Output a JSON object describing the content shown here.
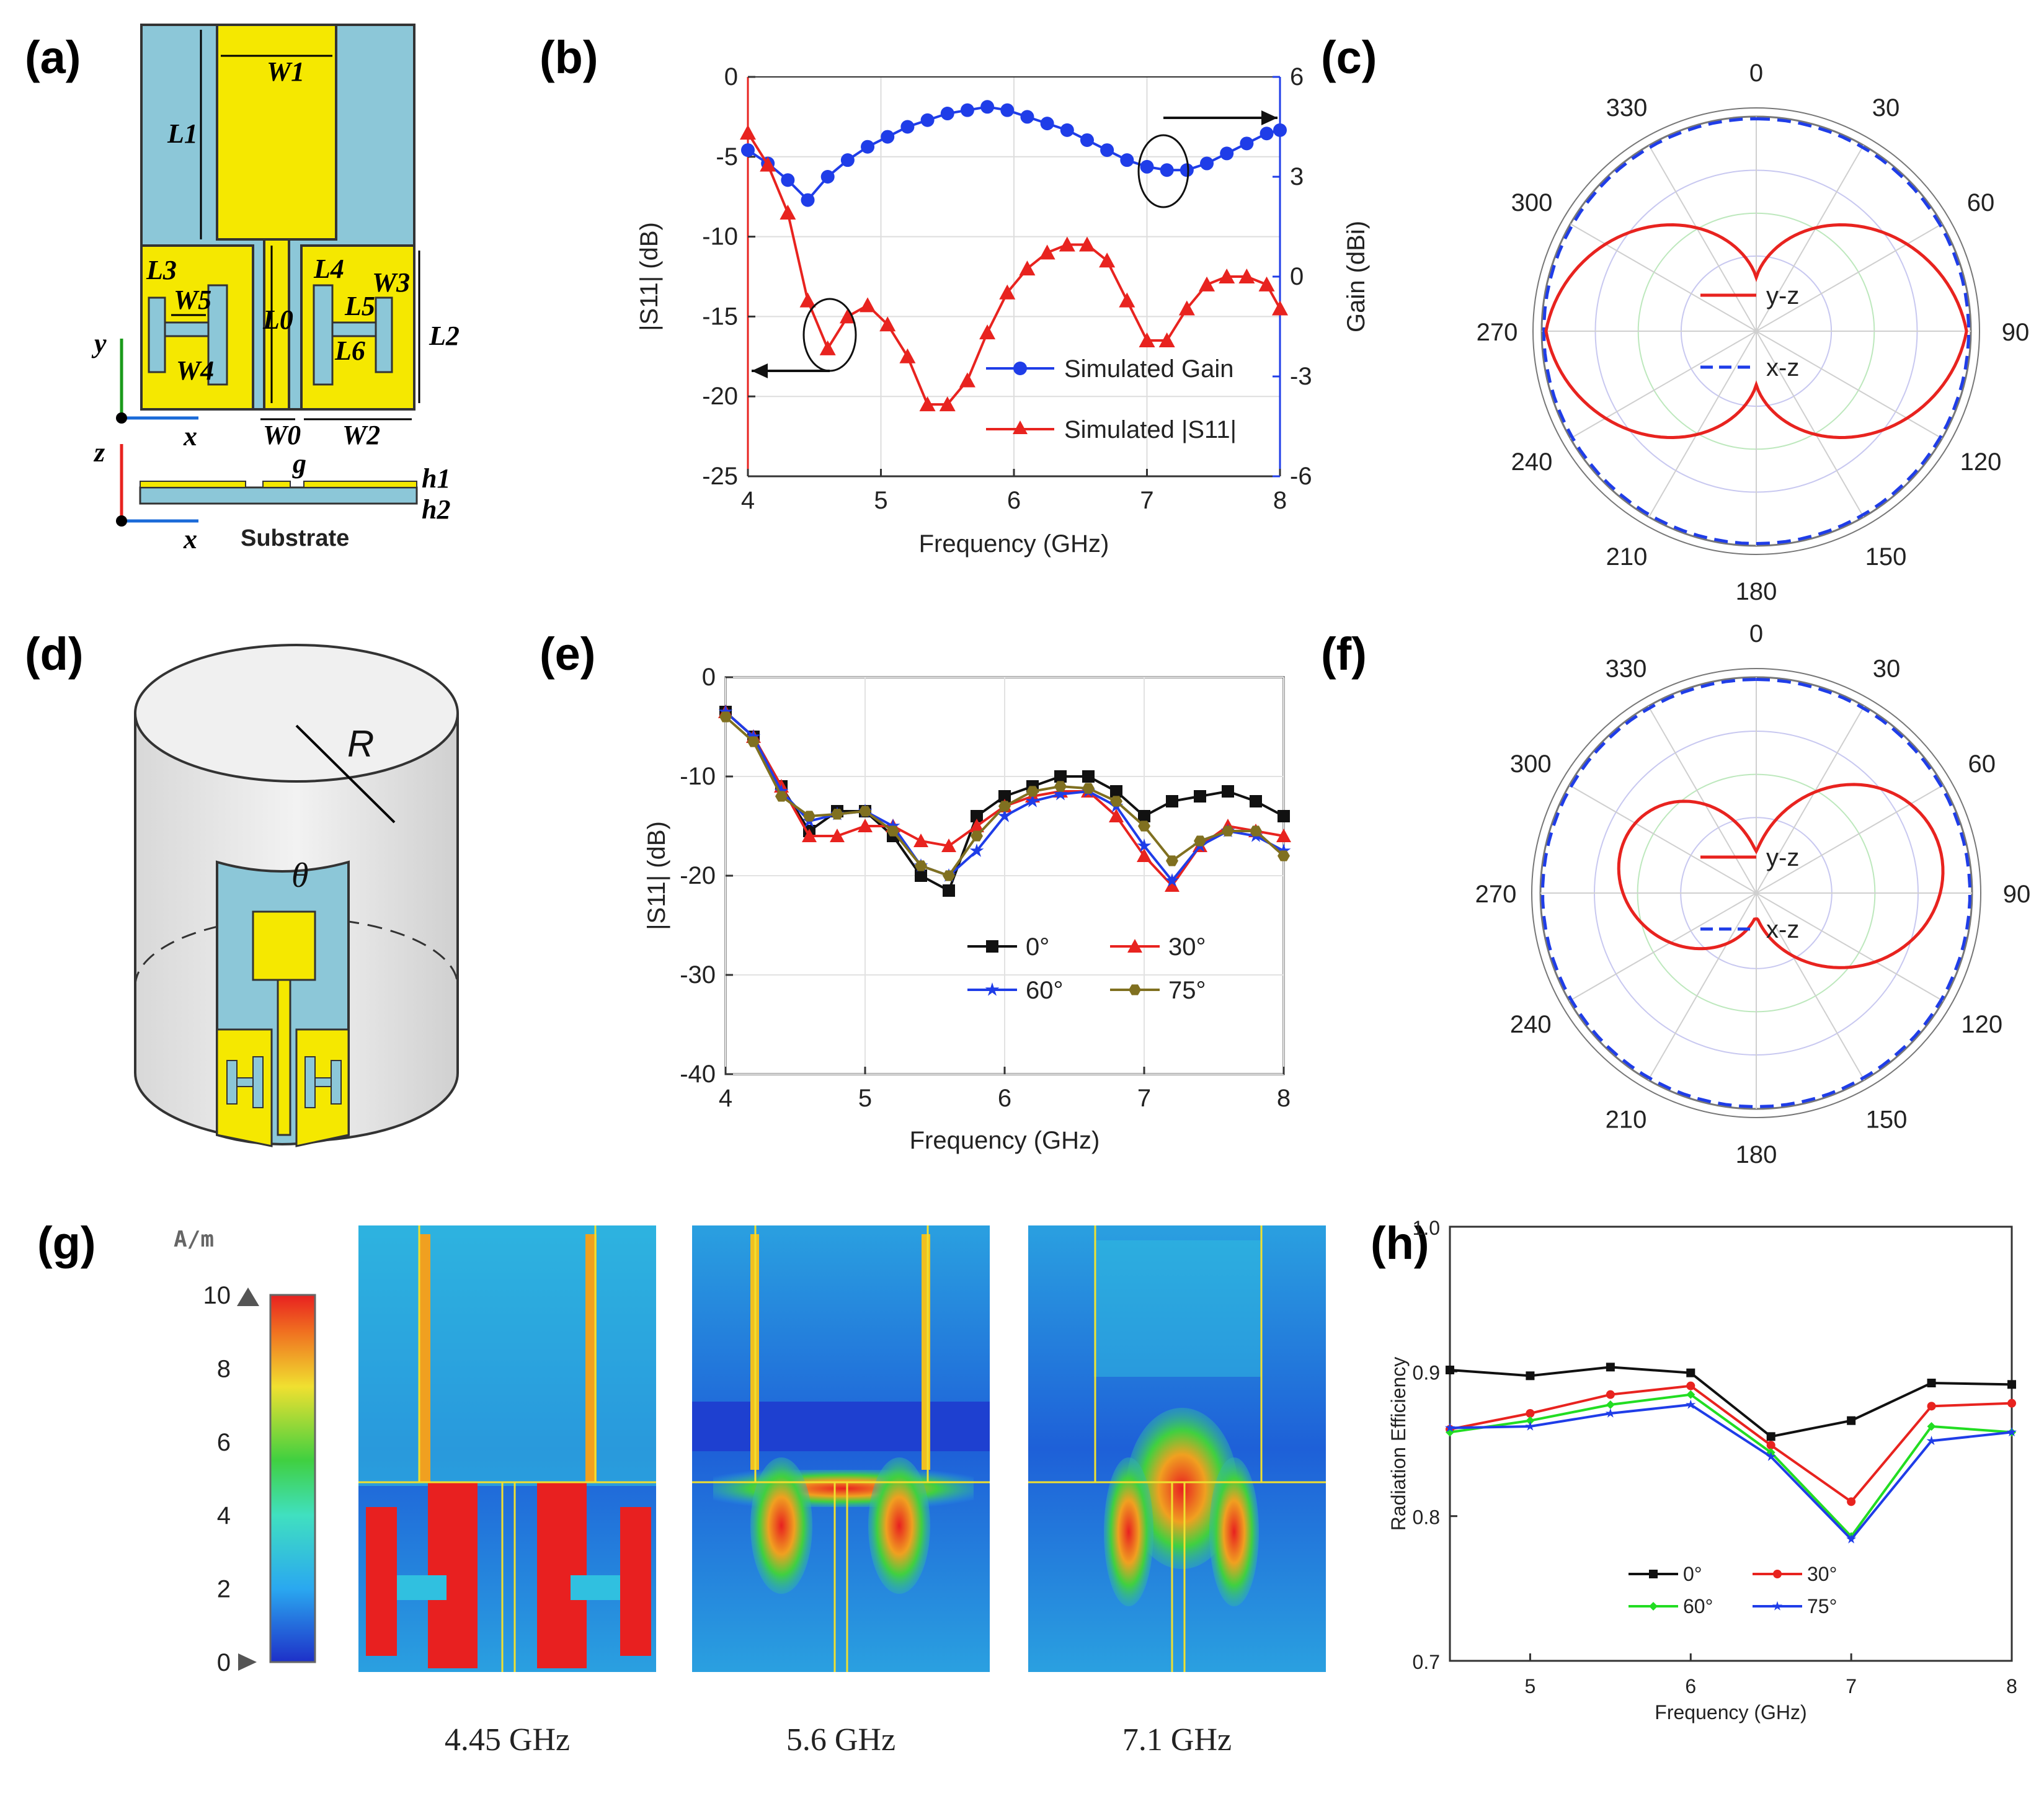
{
  "panel_labels": [
    "(a)",
    "(b)",
    "(c)",
    "(d)",
    "(e)",
    "(f)",
    "(g)",
    "(h)"
  ],
  "colors": {
    "red": "#e8231f",
    "blue": "#1f3de8",
    "black": "#111111",
    "green": "#22dd22",
    "olive": "#807020",
    "yellow": "#f5e800",
    "lightblue": "#8cc7d8",
    "grey": "#e9e9e9"
  },
  "geometry_a": {
    "labels": [
      "W1",
      "L1",
      "L3",
      "W5",
      "W4",
      "L0",
      "L4",
      "W3",
      "L5",
      "L6",
      "L2",
      "W0",
      "W2",
      "g",
      "h1",
      "h2"
    ],
    "axis_y": "y",
    "axis_x": "x",
    "axis_z": "z",
    "substrate": "Substrate"
  },
  "geometry_d": {
    "radius_label": "R",
    "angle_label": "θ"
  },
  "colorbar": {
    "unit": "A/m",
    "ticks": [
      "0",
      "2",
      "4",
      "6",
      "8",
      "10"
    ]
  },
  "current_maps": {
    "captions": [
      "4.45 GHz",
      "5.6 GHz",
      "7.1 GHz"
    ]
  },
  "chart_data": [
    {
      "id": "b",
      "type": "line",
      "xlabel": "Frequency (GHz)",
      "ylabel": "|S11| (dB)",
      "y2label": "Gain (dBi)",
      "xlim": [
        4,
        8
      ],
      "ylim": [
        -25,
        0
      ],
      "y2lim": [
        -6,
        6
      ],
      "xticks": [
        "4",
        "5",
        "6",
        "7",
        "8"
      ],
      "yticks": [
        "0",
        "-5",
        "-10",
        "-15",
        "-20",
        "-25"
      ],
      "y2ticks": [
        "6",
        "3",
        "0",
        "-3",
        "-6"
      ],
      "series": [
        {
          "name": "Simulated Gain",
          "axis": "right",
          "color": "#1f3de8",
          "marker": "circle",
          "x": [
            4.0,
            4.15,
            4.3,
            4.45,
            4.6,
            4.75,
            4.9,
            5.05,
            5.2,
            5.35,
            5.5,
            5.65,
            5.8,
            5.95,
            6.1,
            6.25,
            6.4,
            6.55,
            6.7,
            6.85,
            7.0,
            7.15,
            7.3,
            7.45,
            7.6,
            7.75,
            7.9,
            8.0
          ],
          "y": [
            3.8,
            3.4,
            2.9,
            2.3,
            3.0,
            3.5,
            3.9,
            4.2,
            4.5,
            4.7,
            4.9,
            5.0,
            5.1,
            5.0,
            4.8,
            4.6,
            4.4,
            4.1,
            3.8,
            3.5,
            3.3,
            3.2,
            3.2,
            3.4,
            3.7,
            4.0,
            4.3,
            4.4
          ]
        },
        {
          "name": "Simulated |S11|",
          "axis": "left",
          "color": "#e8231f",
          "marker": "triangle",
          "x": [
            4.0,
            4.15,
            4.3,
            4.45,
            4.6,
            4.75,
            4.9,
            5.05,
            5.2,
            5.35,
            5.5,
            5.65,
            5.8,
            5.95,
            6.1,
            6.25,
            6.4,
            6.55,
            6.7,
            6.85,
            7.0,
            7.15,
            7.3,
            7.45,
            7.6,
            7.75,
            7.9,
            8.0
          ],
          "y": [
            -3.5,
            -5.5,
            -8.5,
            -14,
            -17,
            -15,
            -14.3,
            -15.5,
            -17.5,
            -20.5,
            -20.5,
            -19,
            -16,
            -13.5,
            -12,
            -11,
            -10.5,
            -10.5,
            -11.5,
            -14,
            -16.5,
            -16.5,
            -14.5,
            -13,
            -12.5,
            -12.5,
            -13,
            -14.5
          ]
        }
      ]
    },
    {
      "id": "c",
      "type": "polar",
      "angle_ticks": [
        "0",
        "30",
        "60",
        "90",
        "120",
        "150",
        "180",
        "210",
        "240",
        "270",
        "300",
        "330"
      ],
      "series": [
        {
          "name": "y-z",
          "color": "#e8231f",
          "style": "solid"
        },
        {
          "name": "x-z",
          "color": "#1f3de8",
          "style": "dashed"
        }
      ]
    },
    {
      "id": "e",
      "type": "line",
      "xlabel": "Frequency (GHz)",
      "ylabel": "|S11| (dB)",
      "xlim": [
        4,
        8
      ],
      "ylim": [
        -40,
        0
      ],
      "xticks": [
        "4",
        "5",
        "6",
        "7",
        "8"
      ],
      "yticks": [
        "0",
        "-10",
        "-20",
        "-30",
        "-40"
      ],
      "x": [
        4.0,
        4.2,
        4.4,
        4.6,
        4.8,
        5.0,
        5.2,
        5.4,
        5.6,
        5.8,
        6.0,
        6.2,
        6.4,
        6.6,
        6.8,
        7.0,
        7.2,
        7.4,
        7.6,
        7.8,
        8.0
      ],
      "series": [
        {
          "name": "0°",
          "color": "#111111",
          "marker": "square",
          "y": [
            -3.5,
            -6,
            -11,
            -15.5,
            -13.5,
            -13.5,
            -16,
            -20,
            -21.5,
            -14,
            -12,
            -11,
            -10,
            -10,
            -11.5,
            -14,
            -12.5,
            -12,
            -11.5,
            -12.5,
            -14
          ]
        },
        {
          "name": "30°",
          "color": "#e8231f",
          "marker": "triangle",
          "y": [
            -3.5,
            -6,
            -11,
            -16,
            -16,
            -15,
            -15,
            -16.5,
            -17,
            -15,
            -13,
            -12,
            -11.5,
            -11.5,
            -14,
            -18,
            -21,
            -17,
            -15,
            -15.5,
            -16
          ]
        },
        {
          "name": "60°",
          "color": "#1f3de8",
          "marker": "star",
          "y": [
            -3.5,
            -6,
            -11.5,
            -14.5,
            -13.8,
            -13.5,
            -15,
            -19,
            -20,
            -17.5,
            -14,
            -12.5,
            -11.8,
            -11.5,
            -13,
            -17,
            -20.5,
            -17,
            -15.5,
            -16,
            -17.5
          ]
        },
        {
          "name": "75°",
          "color": "#807020",
          "marker": "hexagon",
          "y": [
            -4,
            -6.5,
            -12,
            -14,
            -13.8,
            -13.5,
            -15.5,
            -19,
            -20,
            -16,
            -13,
            -11.5,
            -11,
            -11.2,
            -12.5,
            -15,
            -18.5,
            -16.5,
            -15.5,
            -15.5,
            -18
          ]
        }
      ]
    },
    {
      "id": "f",
      "type": "polar",
      "angle_ticks": [
        "0",
        "30",
        "60",
        "90",
        "120",
        "150",
        "180",
        "210",
        "240",
        "270",
        "300",
        "330"
      ],
      "series": [
        {
          "name": "y-z",
          "color": "#e8231f",
          "style": "solid"
        },
        {
          "name": "x-z",
          "color": "#1f3de8",
          "style": "dashed"
        }
      ]
    },
    {
      "id": "h",
      "type": "line",
      "xlabel": "Frequency (GHz)",
      "ylabel": "Radiation Efficiency",
      "xlim": [
        4.5,
        8
      ],
      "ylim": [
        0.7,
        1.0
      ],
      "xticks": [
        "5",
        "6",
        "7",
        "8"
      ],
      "yticks": [
        "0.7",
        "0.8",
        "0.9",
        "1.0"
      ],
      "x": [
        4.5,
        5.0,
        5.5,
        6.0,
        6.5,
        7.0,
        7.5,
        8.0
      ],
      "series": [
        {
          "name": "0°",
          "color": "#111111",
          "marker": "square",
          "y": [
            0.901,
            0.897,
            0.903,
            0.899,
            0.855,
            0.866,
            0.892,
            0.891
          ]
        },
        {
          "name": "30°",
          "color": "#e8231f",
          "marker": "circle",
          "y": [
            0.86,
            0.871,
            0.884,
            0.89,
            0.849,
            0.81,
            0.876,
            0.878
          ]
        },
        {
          "name": "60°",
          "color": "#22dd22",
          "marker": "diamond",
          "y": [
            0.858,
            0.866,
            0.877,
            0.884,
            0.844,
            0.786,
            0.862,
            0.858
          ]
        },
        {
          "name": "75°",
          "color": "#1f3de8",
          "marker": "star",
          "y": [
            0.861,
            0.862,
            0.871,
            0.877,
            0.841,
            0.784,
            0.852,
            0.858
          ]
        }
      ]
    }
  ]
}
